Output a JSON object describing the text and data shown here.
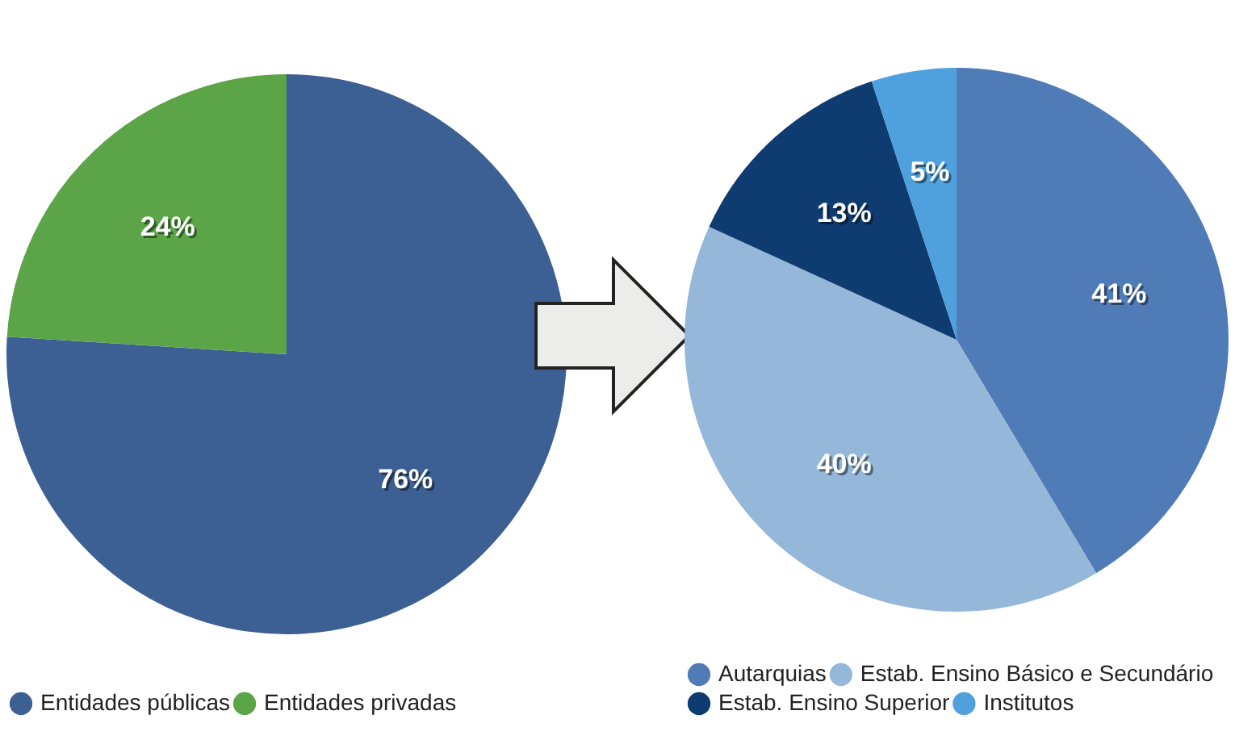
{
  "chart_data": [
    {
      "type": "pie",
      "categories": [
        "Entidades públicas",
        "Entidades privadas"
      ],
      "values": [
        76,
        24
      ],
      "colors": [
        "#3d6094",
        "#5ba548"
      ],
      "value_labels": [
        "76%",
        "24%"
      ],
      "legend": "bottom"
    },
    {
      "type": "pie",
      "categories": [
        "Autarquias",
        "Estab. Ensino Básico e Secundário",
        "Estab. Ensino Superior",
        "Institutos"
      ],
      "values": [
        41,
        40,
        13,
        5
      ],
      "colors": [
        "#4f7bb7",
        "#95b7d9",
        "#0e3b70",
        "#4fa1dd"
      ],
      "value_labels": [
        "41%",
        "40%",
        "13%",
        "5%"
      ],
      "legend": "bottom"
    }
  ]
}
